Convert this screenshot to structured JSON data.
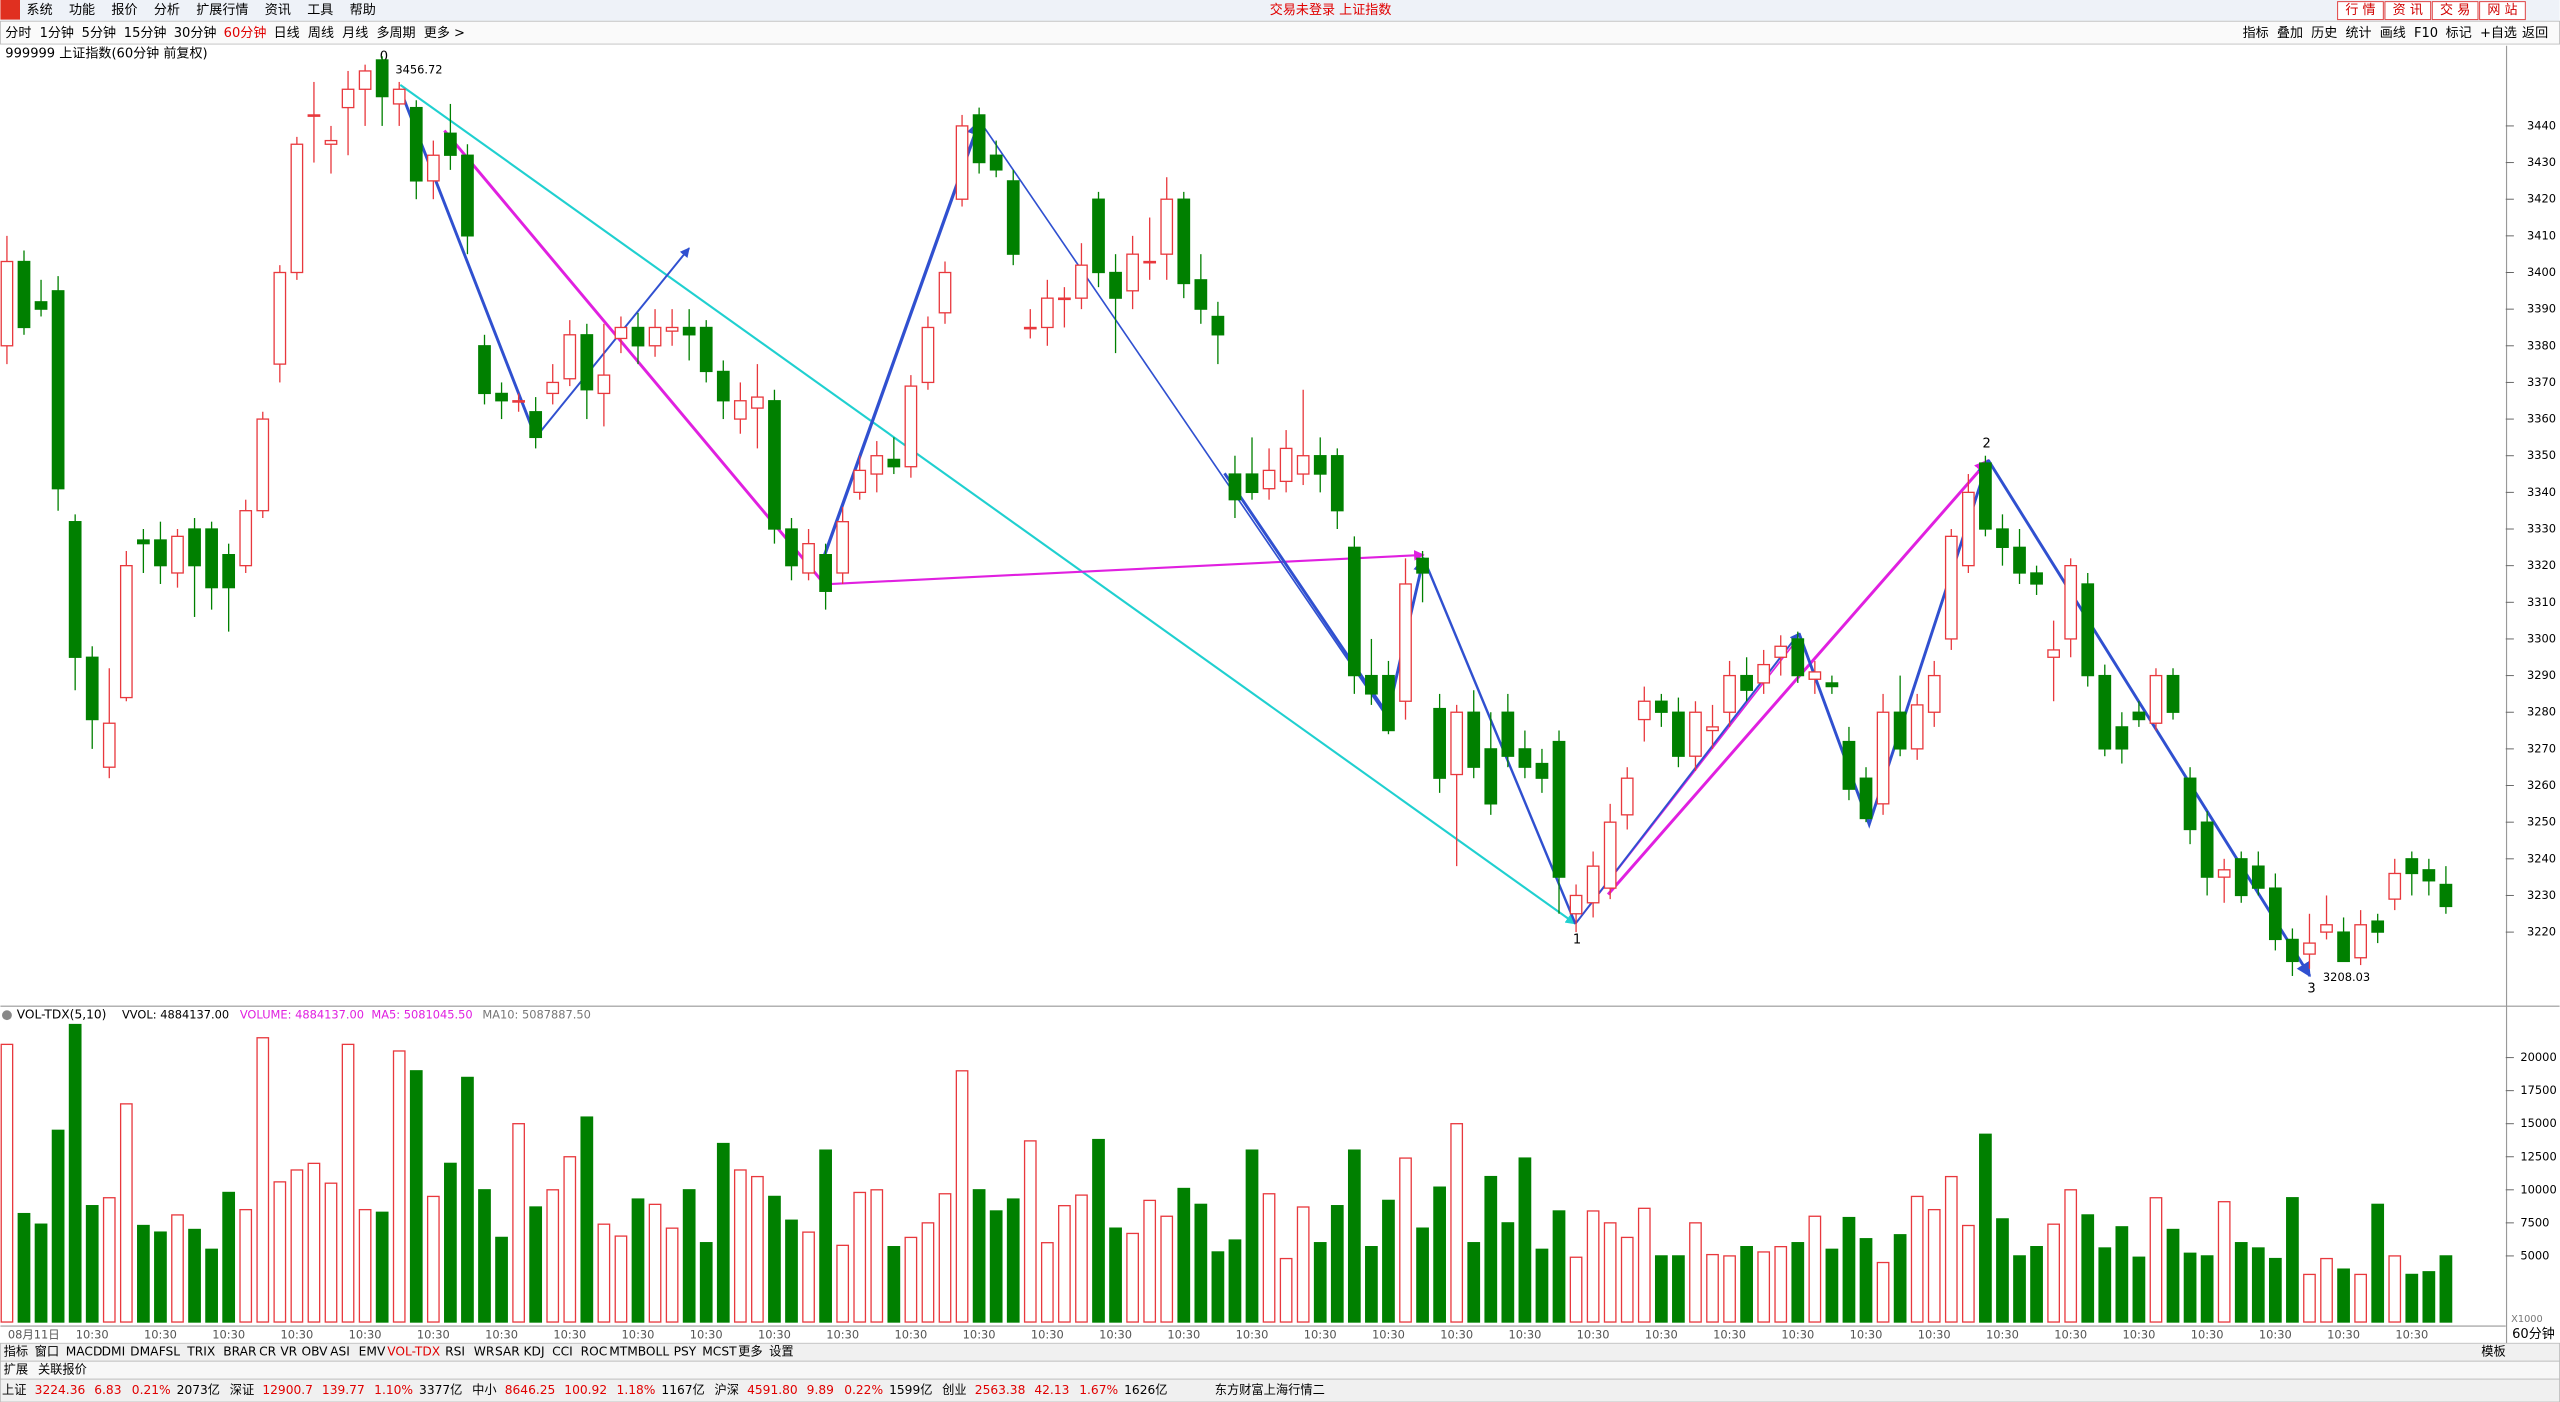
{
  "menu": {
    "items": [
      "系统",
      "功能",
      "报价",
      "分析",
      "扩展行情",
      "资讯",
      "工具",
      "帮助"
    ],
    "title": "交易未登录  上证指数",
    "buttons": [
      "行 情",
      "资 讯",
      "交 易",
      "网 站"
    ]
  },
  "toolbar": {
    "periods": [
      "分时",
      "1分钟",
      "5分钟",
      "15分钟",
      "30分钟",
      "60分钟",
      "日线",
      "周线",
      "月线",
      "多周期",
      "更多 >"
    ],
    "active": 5,
    "tools": [
      "指标",
      "叠加",
      "历史",
      "统计",
      "画线",
      "F10",
      "标记",
      "+自选",
      "返回"
    ]
  },
  "chart_data": [
    {
      "type": "candlestick",
      "title": "999999 上证指数(60分钟 前复权)",
      "up_color": "#e8383d",
      "down_color": "#008000",
      "ylim": [
        3200,
        3461
      ],
      "yticks": [
        3220,
        3230,
        3240,
        3250,
        3260,
        3270,
        3280,
        3290,
        3300,
        3310,
        3320,
        3330,
        3340,
        3350,
        3360,
        3370,
        3380,
        3390,
        3400,
        3410,
        3420,
        3430,
        3440
      ],
      "xlabels": [
        "08月11日",
        "10:30",
        "10:30",
        "10:30",
        "10:30",
        "10:30",
        "10:30",
        "10:30",
        "10:30",
        "10:30",
        "10:30",
        "10:30",
        "10:30",
        "10:30",
        "10:30",
        "10:30",
        "10:30",
        "10:30",
        "10:30",
        "10:30",
        "10:30",
        "10:30",
        "10:30",
        "10:30",
        "10:30",
        "10:30",
        "10:30",
        "10:30",
        "10:30",
        "10:30",
        "10:30",
        "10:30",
        "10:30",
        "10:30",
        "10:30",
        "10:30"
      ],
      "annotations": [
        "0",
        "3456.72",
        "1",
        "2",
        "3",
        "3208.03"
      ],
      "period_label": "60分钟",
      "ohlc": [
        [
          3380,
          3410,
          3375,
          3403
        ],
        [
          3403,
          3406,
          3383,
          3385
        ],
        [
          3392,
          3398,
          3388,
          3390
        ],
        [
          3395,
          3399,
          3335,
          3341
        ],
        [
          3332,
          3334,
          3286,
          3295
        ],
        [
          3295,
          3298,
          3270,
          3278
        ],
        [
          3265,
          3292,
          3262,
          3277
        ],
        [
          3284,
          3324,
          3283,
          3320
        ],
        [
          3327,
          3330,
          3318,
          3326
        ],
        [
          3327,
          3332,
          3315,
          3320
        ],
        [
          3318,
          3330,
          3314,
          3328
        ],
        [
          3330,
          3333,
          3306,
          3320
        ],
        [
          3330,
          3332,
          3308,
          3314
        ],
        [
          3323,
          3326,
          3302,
          3314
        ],
        [
          3320,
          3338,
          3318,
          3335
        ],
        [
          3335,
          3362,
          3333,
          3360
        ],
        [
          3375,
          3402,
          3370,
          3400
        ],
        [
          3400,
          3437,
          3398,
          3435
        ],
        [
          3443,
          3452,
          3430,
          3443
        ],
        [
          3435,
          3440,
          3427,
          3436
        ],
        [
          3445,
          3455,
          3432,
          3450
        ],
        [
          3450,
          3456.72,
          3440,
          3455
        ],
        [
          3458,
          3459,
          3440,
          3448
        ],
        [
          3446,
          3452,
          3440,
          3450
        ],
        [
          3445,
          3447,
          3420,
          3425
        ],
        [
          3425,
          3436,
          3420,
          3432
        ],
        [
          3438,
          3446,
          3428,
          3432
        ],
        [
          3432,
          3435,
          3405,
          3410
        ],
        [
          3380,
          3383,
          3364,
          3367
        ],
        [
          3367,
          3370,
          3360,
          3365
        ],
        [
          3365,
          3367,
          3362,
          3365
        ],
        [
          3362,
          3366,
          3352,
          3355
        ],
        [
          3367,
          3375,
          3364,
          3370
        ],
        [
          3371,
          3387,
          3369,
          3383
        ],
        [
          3383,
          3386,
          3360,
          3368
        ],
        [
          3367,
          3386,
          3358,
          3372
        ],
        [
          3382,
          3388,
          3378,
          3385
        ],
        [
          3385,
          3389,
          3375,
          3380
        ],
        [
          3380,
          3390,
          3377,
          3385
        ],
        [
          3384,
          3390,
          3380,
          3385
        ],
        [
          3385,
          3390,
          3376,
          3383
        ],
        [
          3385,
          3387,
          3370,
          3373
        ],
        [
          3373,
          3376,
          3360,
          3365
        ],
        [
          3360,
          3370,
          3356,
          3365
        ],
        [
          3363,
          3375,
          3352,
          3366
        ],
        [
          3365,
          3368,
          3326,
          3330
        ],
        [
          3330,
          3333,
          3316,
          3320
        ],
        [
          3318,
          3330,
          3316,
          3326
        ],
        [
          3323,
          3326,
          3308,
          3313
        ],
        [
          3318,
          3336,
          3315,
          3332
        ],
        [
          3340,
          3350,
          3338,
          3346
        ],
        [
          3345,
          3354,
          3340,
          3350
        ],
        [
          3349,
          3355,
          3345,
          3347
        ],
        [
          3347,
          3372,
          3344,
          3369
        ],
        [
          3370,
          3388,
          3368,
          3385
        ],
        [
          3389,
          3403,
          3386,
          3400
        ],
        [
          3420,
          3443,
          3418,
          3440
        ],
        [
          3443,
          3445,
          3427,
          3430
        ],
        [
          3432,
          3436,
          3426,
          3428
        ],
        [
          3425,
          3428,
          3402,
          3405
        ],
        [
          3385,
          3390,
          3382,
          3385
        ],
        [
          3385,
          3398,
          3380,
          3393
        ],
        [
          3393,
          3396,
          3385,
          3393
        ],
        [
          3393,
          3408,
          3390,
          3402
        ],
        [
          3420,
          3422,
          3396,
          3400
        ],
        [
          3400,
          3405,
          3378,
          3393
        ],
        [
          3395,
          3410,
          3390,
          3405
        ],
        [
          3403,
          3415,
          3398,
          3403
        ],
        [
          3405,
          3426,
          3398,
          3420
        ],
        [
          3420,
          3422,
          3393,
          3397
        ],
        [
          3398,
          3405,
          3386,
          3390
        ],
        [
          3388,
          3392,
          3375,
          3383
        ],
        [
          3345,
          3350,
          3333,
          3338
        ],
        [
          3345,
          3355,
          3338,
          3340
        ],
        [
          3341,
          3352,
          3338,
          3346
        ],
        [
          3343,
          3357,
          3340,
          3352
        ],
        [
          3345,
          3368,
          3342,
          3350
        ],
        [
          3350,
          3355,
          3340,
          3345
        ],
        [
          3350,
          3352,
          3330,
          3335
        ],
        [
          3325,
          3328,
          3285,
          3290
        ],
        [
          3290,
          3300,
          3282,
          3285
        ],
        [
          3290,
          3294,
          3274,
          3275
        ],
        [
          3283,
          3322,
          3278,
          3315
        ],
        [
          3322,
          3324,
          3310,
          3318
        ],
        [
          3281,
          3285,
          3258,
          3262
        ],
        [
          3263,
          3282,
          3238,
          3280
        ],
        [
          3280,
          3286,
          3262,
          3265
        ],
        [
          3270,
          3280,
          3252,
          3255
        ],
        [
          3280,
          3285,
          3265,
          3268
        ],
        [
          3270,
          3275,
          3262,
          3265
        ],
        [
          3266,
          3270,
          3258,
          3262
        ],
        [
          3272,
          3275,
          3225,
          3235
        ],
        [
          3225,
          3233,
          3220,
          3230
        ],
        [
          3228,
          3242,
          3224,
          3238
        ],
        [
          3232,
          3255,
          3229,
          3250
        ],
        [
          3252,
          3265,
          3248,
          3262
        ],
        [
          3278,
          3287,
          3272,
          3283
        ],
        [
          3283,
          3285,
          3276,
          3280
        ],
        [
          3280,
          3284,
          3265,
          3268
        ],
        [
          3268,
          3283,
          3264,
          3280
        ],
        [
          3275,
          3282,
          3270,
          3276
        ],
        [
          3280,
          3294,
          3276,
          3290
        ],
        [
          3290,
          3295,
          3283,
          3286
        ],
        [
          3288,
          3297,
          3285,
          3293
        ],
        [
          3295,
          3301,
          3290,
          3298
        ],
        [
          3300,
          3302,
          3288,
          3290
        ],
        [
          3289,
          3294,
          3285,
          3291
        ],
        [
          3288,
          3290,
          3285,
          3287
        ],
        [
          3272,
          3276,
          3256,
          3259
        ],
        [
          3262,
          3265,
          3250,
          3251
        ],
        [
          3255,
          3285,
          3252,
          3280
        ],
        [
          3280,
          3290,
          3268,
          3270
        ],
        [
          3270,
          3285,
          3267,
          3282
        ],
        [
          3280,
          3294,
          3276,
          3290
        ],
        [
          3300,
          3330,
          3297,
          3328
        ],
        [
          3320,
          3345,
          3318,
          3340
        ],
        [
          3348,
          3350,
          3328,
          3330
        ],
        [
          3330,
          3334,
          3320,
          3325
        ],
        [
          3325,
          3330,
          3315,
          3318
        ],
        [
          3318,
          3320,
          3312,
          3315
        ],
        [
          3295,
          3305,
          3283,
          3297
        ],
        [
          3300,
          3322,
          3295,
          3320
        ],
        [
          3315,
          3318,
          3287,
          3290
        ],
        [
          3290,
          3293,
          3268,
          3270
        ],
        [
          3276,
          3280,
          3266,
          3270
        ],
        [
          3280,
          3283,
          3276,
          3278
        ],
        [
          3277,
          3292,
          3275,
          3290
        ],
        [
          3290,
          3292,
          3278,
          3280
        ],
        [
          3262,
          3265,
          3244,
          3248
        ],
        [
          3250,
          3253,
          3230,
          3235
        ],
        [
          3235,
          3240,
          3228,
          3237
        ],
        [
          3240,
          3242,
          3228,
          3230
        ],
        [
          3238,
          3242,
          3230,
          3232
        ],
        [
          3232,
          3236,
          3215,
          3218
        ],
        [
          3218,
          3221,
          3208.03,
          3212
        ],
        [
          3214,
          3225,
          3210,
          3217
        ],
        [
          3220,
          3230,
          3218,
          3222
        ],
        [
          3220,
          3224,
          3212,
          3212
        ],
        [
          3213,
          3226,
          3211,
          3222
        ],
        [
          3223,
          3225,
          3217,
          3220
        ],
        [
          3229,
          3240,
          3226,
          3236
        ],
        [
          3240,
          3242,
          3230,
          3236
        ],
        [
          3237,
          3240,
          3230,
          3234
        ],
        [
          3233,
          3238,
          3225,
          3227
        ]
      ]
    },
    {
      "type": "bar",
      "title": "VOL-TDX(5,10)",
      "stats": [
        "VVOL: 4884137.00",
        "VOLUME: 4884137.00",
        "MA5: 5081045.50",
        "MA10: 5087887.50"
      ],
      "unit": "X1000",
      "ylim": [
        0,
        22800
      ],
      "yticks": [
        5000,
        7500,
        10000,
        12500,
        15000,
        17500,
        20000
      ],
      "values": [
        21000,
        8200,
        7400,
        14500,
        22500,
        8800,
        9400,
        16500,
        7300,
        6800,
        8100,
        7000,
        5500,
        9800,
        8500,
        21500,
        10600,
        11500,
        12000,
        10500,
        21000,
        8500,
        8300,
        20500,
        19000,
        9500,
        12000,
        18500,
        10000,
        6400,
        15000,
        8700,
        10000,
        12500,
        15500,
        7400,
        6500,
        9300,
        8900,
        7100,
        10000,
        6000,
        13500,
        11500,
        11000,
        9500,
        7700,
        6800,
        13000,
        5800,
        9800,
        10000,
        5700,
        6400,
        7500,
        9700,
        19000,
        10000,
        8400,
        9300,
        13700,
        6000,
        8800,
        9600,
        13800,
        7100,
        6700,
        9200,
        8000,
        10100,
        8900,
        5300,
        6200,
        13000,
        9700,
        4800,
        8700,
        6000,
        8800,
        13000,
        5700,
        9200,
        12400,
        7100,
        10200,
        15000,
        6000,
        11000,
        7500,
        12400,
        5500,
        8400,
        4900,
        8400,
        7500,
        6400,
        8600,
        5000,
        5000,
        7500,
        5100,
        5000,
        5700,
        5300,
        5700,
        6000,
        8000,
        5500,
        7900,
        6300,
        4500,
        6600,
        9500,
        8500,
        11000,
        7300,
        14200,
        7800,
        5000,
        5700,
        7400,
        10000,
        8100,
        5600,
        7200,
        4900,
        9400,
        7000,
        5200,
        5000,
        9100,
        6000,
        5600,
        4800,
        9400,
        3600,
        4800,
        4000,
        3600,
        8900,
        5000,
        3600,
        3800,
        5000
      ]
    }
  ],
  "indicator_tabs": {
    "items": [
      "指标",
      "窗口",
      "MACD",
      "DMI",
      "DMA",
      "FSL",
      "TRIX",
      "BRAR",
      "CR",
      "VR",
      "OBV",
      "ASI",
      "EMV",
      "VOL-TDX",
      "RSI",
      "WR",
      "SAR",
      "KDJ",
      "CCI",
      "ROC",
      "MTM",
      "BOLL",
      "PSY",
      "MCST",
      "更多",
      "设置"
    ],
    "active": 13,
    "template": "模板",
    "sub": [
      "扩展",
      "关联报价"
    ]
  },
  "status": {
    "indices": [
      [
        "上证",
        "3224.36",
        "6.83",
        "0.21%",
        "2073亿"
      ],
      [
        "深证",
        "12900.7",
        "139.77",
        "1.10%",
        "3377亿"
      ],
      [
        "中小",
        "8646.25",
        "100.92",
        "1.18%",
        "1167亿"
      ],
      [
        "沪深",
        "4591.80",
        "9.89",
        "0.22%",
        "1599亿"
      ],
      [
        "创业",
        "2563.38",
        "42.13",
        "1.67%",
        "1626亿"
      ]
    ],
    "source": "东方财富上海行情二"
  }
}
